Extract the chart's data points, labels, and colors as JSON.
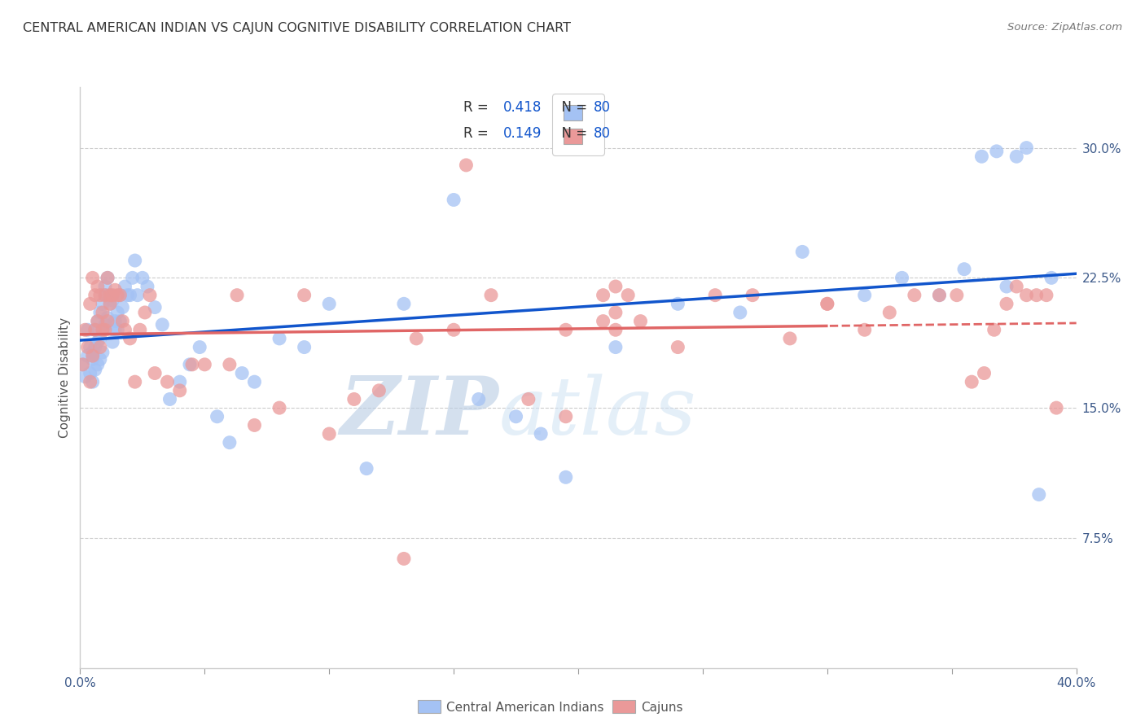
{
  "title": "CENTRAL AMERICAN INDIAN VS CAJUN COGNITIVE DISABILITY CORRELATION CHART",
  "source": "Source: ZipAtlas.com",
  "ylabel": "Cognitive Disability",
  "watermark_zip": "ZIP",
  "watermark_atlas": "atlas",
  "xlim": [
    0.0,
    0.4
  ],
  "ylim": [
    0.0,
    0.335
  ],
  "yticks_right": [
    0.075,
    0.15,
    0.225,
    0.3
  ],
  "ytick_labels_right": [
    "7.5%",
    "15.0%",
    "22.5%",
    "30.0%"
  ],
  "blue_color": "#a4c2f4",
  "pink_color": "#ea9999",
  "blue_line_color": "#1155cc",
  "pink_line_color": "#e06666",
  "R_blue": 0.418,
  "N_blue": 80,
  "R_pink": 0.149,
  "N_pink": 80,
  "legend_label_blue": "Central American Indians",
  "legend_label_pink": "Cajuns",
  "blue_scatter_x": [
    0.001,
    0.002,
    0.003,
    0.003,
    0.004,
    0.004,
    0.005,
    0.005,
    0.005,
    0.006,
    0.006,
    0.006,
    0.007,
    0.007,
    0.007,
    0.008,
    0.008,
    0.008,
    0.009,
    0.009,
    0.009,
    0.01,
    0.01,
    0.01,
    0.011,
    0.011,
    0.012,
    0.012,
    0.013,
    0.013,
    0.014,
    0.014,
    0.015,
    0.015,
    0.016,
    0.016,
    0.017,
    0.018,
    0.019,
    0.02,
    0.021,
    0.022,
    0.023,
    0.025,
    0.027,
    0.03,
    0.033,
    0.036,
    0.04,
    0.044,
    0.048,
    0.055,
    0.06,
    0.065,
    0.07,
    0.08,
    0.09,
    0.1,
    0.115,
    0.13,
    0.15,
    0.16,
    0.175,
    0.185,
    0.195,
    0.215,
    0.24,
    0.265,
    0.29,
    0.315,
    0.33,
    0.345,
    0.355,
    0.362,
    0.368,
    0.372,
    0.376,
    0.38,
    0.385,
    0.39
  ],
  "blue_scatter_y": [
    0.175,
    0.168,
    0.18,
    0.195,
    0.17,
    0.185,
    0.178,
    0.182,
    0.165,
    0.172,
    0.185,
    0.195,
    0.2,
    0.175,
    0.188,
    0.178,
    0.19,
    0.205,
    0.182,
    0.195,
    0.21,
    0.22,
    0.198,
    0.215,
    0.202,
    0.225,
    0.21,
    0.215,
    0.212,
    0.188,
    0.2,
    0.195,
    0.205,
    0.195,
    0.215,
    0.2,
    0.208,
    0.22,
    0.215,
    0.215,
    0.225,
    0.235,
    0.215,
    0.225,
    0.22,
    0.208,
    0.198,
    0.155,
    0.165,
    0.175,
    0.185,
    0.145,
    0.13,
    0.17,
    0.165,
    0.19,
    0.185,
    0.21,
    0.115,
    0.21,
    0.27,
    0.155,
    0.145,
    0.135,
    0.11,
    0.185,
    0.21,
    0.205,
    0.24,
    0.215,
    0.225,
    0.215,
    0.23,
    0.295,
    0.298,
    0.22,
    0.295,
    0.3,
    0.1,
    0.225
  ],
  "pink_scatter_x": [
    0.001,
    0.002,
    0.003,
    0.004,
    0.004,
    0.005,
    0.005,
    0.006,
    0.006,
    0.007,
    0.007,
    0.008,
    0.008,
    0.009,
    0.009,
    0.01,
    0.01,
    0.011,
    0.011,
    0.012,
    0.012,
    0.013,
    0.014,
    0.015,
    0.016,
    0.017,
    0.018,
    0.02,
    0.022,
    0.024,
    0.026,
    0.028,
    0.03,
    0.035,
    0.04,
    0.045,
    0.05,
    0.06,
    0.07,
    0.08,
    0.09,
    0.1,
    0.11,
    0.12,
    0.135,
    0.15,
    0.165,
    0.18,
    0.195,
    0.21,
    0.225,
    0.24,
    0.255,
    0.27,
    0.285,
    0.3,
    0.315,
    0.325,
    0.335,
    0.345,
    0.352,
    0.358,
    0.363,
    0.367,
    0.372,
    0.376,
    0.38,
    0.384,
    0.388,
    0.392,
    0.3,
    0.155,
    0.13,
    0.195,
    0.21,
    0.22,
    0.215,
    0.215,
    0.215,
    0.063
  ],
  "pink_scatter_y": [
    0.175,
    0.195,
    0.185,
    0.165,
    0.21,
    0.225,
    0.18,
    0.215,
    0.195,
    0.2,
    0.22,
    0.215,
    0.185,
    0.195,
    0.205,
    0.215,
    0.195,
    0.225,
    0.2,
    0.21,
    0.215,
    0.215,
    0.218,
    0.215,
    0.215,
    0.2,
    0.195,
    0.19,
    0.165,
    0.195,
    0.205,
    0.215,
    0.17,
    0.165,
    0.16,
    0.175,
    0.175,
    0.175,
    0.14,
    0.15,
    0.215,
    0.135,
    0.155,
    0.16,
    0.19,
    0.195,
    0.215,
    0.155,
    0.145,
    0.2,
    0.2,
    0.185,
    0.215,
    0.215,
    0.19,
    0.21,
    0.195,
    0.205,
    0.215,
    0.215,
    0.215,
    0.165,
    0.17,
    0.195,
    0.21,
    0.22,
    0.215,
    0.215,
    0.215,
    0.15,
    0.21,
    0.29,
    0.063,
    0.195,
    0.215,
    0.215,
    0.205,
    0.195,
    0.22,
    0.215
  ]
}
